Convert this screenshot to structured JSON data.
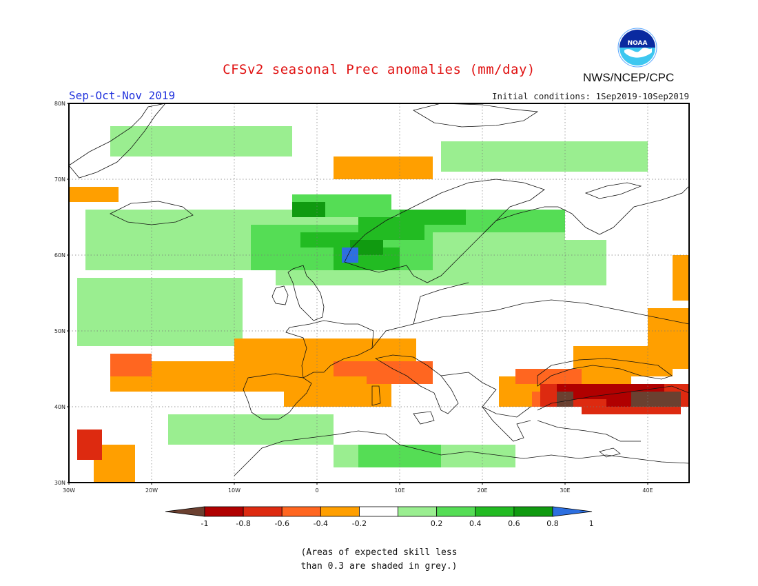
{
  "header": {
    "title": "CFSv2 seasonal Prec anomalies (mm/day)",
    "season": "Sep-Oct-Nov 2019",
    "initial_conditions": "Initial conditions: 1Sep2019-10Sep2019",
    "agency": "NWS/NCEP/CPC",
    "logo_text": "NOAA"
  },
  "map": {
    "lon_range": [
      -30,
      45
    ],
    "lat_range": [
      30,
      80
    ],
    "lat_labels": [
      "30N",
      "40N",
      "50N",
      "60N",
      "70N",
      "80N"
    ],
    "lon_labels": [
      "30W",
      "20W",
      "10W",
      "0",
      "10E",
      "20E",
      "30E",
      "40E"
    ],
    "gridlines": true
  },
  "colorbar": {
    "tick_labels": [
      "-1",
      "-0.8",
      "-0.6",
      "-0.4",
      "-0.2",
      "0.2",
      "0.4",
      "0.6",
      "0.8",
      "1"
    ],
    "colors": [
      "#6b4030",
      "#b00000",
      "#dd2a10",
      "#ff6620",
      "#ff9f00",
      "#ffffff",
      "#9aee90",
      "#55dd55",
      "#22bb22",
      "#109a10",
      "#2d6fe0"
    ]
  },
  "footnote": {
    "line1": "(Areas of expected skill less",
    "line2": "than 0.3 are shaded in grey.)"
  }
}
